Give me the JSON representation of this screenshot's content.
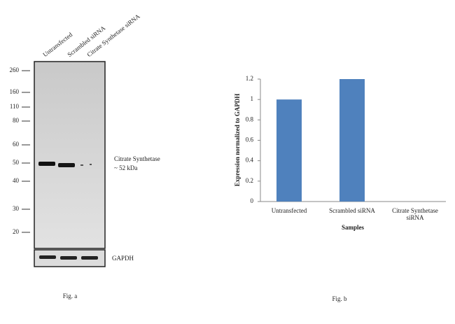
{
  "blot": {
    "lanes": [
      "Untransfected",
      "Scrambled siRNA",
      "Citrate Synthetase siRNA"
    ],
    "markers": [
      260,
      160,
      110,
      80,
      60,
      50,
      40,
      30,
      20
    ],
    "band_label": [
      "Citrate Synthetase",
      "~ 52 kDa"
    ],
    "loading_control": "GAPDH",
    "caption": "Fig. a"
  },
  "chart_data": {
    "type": "bar",
    "categories": [
      "Untransfected",
      "Scrambled siRNA",
      "Citrate Synthetase siRNA"
    ],
    "values": [
      1,
      1.2,
      0
    ],
    "color": "#4f81bd",
    "ylim": [
      0,
      1.2
    ],
    "yticks": [
      0,
      0.2,
      0.4,
      0.6,
      0.8,
      1,
      1.2
    ],
    "y_label": "Expression  normalized to GAPDH",
    "x_label": "Samples",
    "caption": "Fig. b"
  }
}
